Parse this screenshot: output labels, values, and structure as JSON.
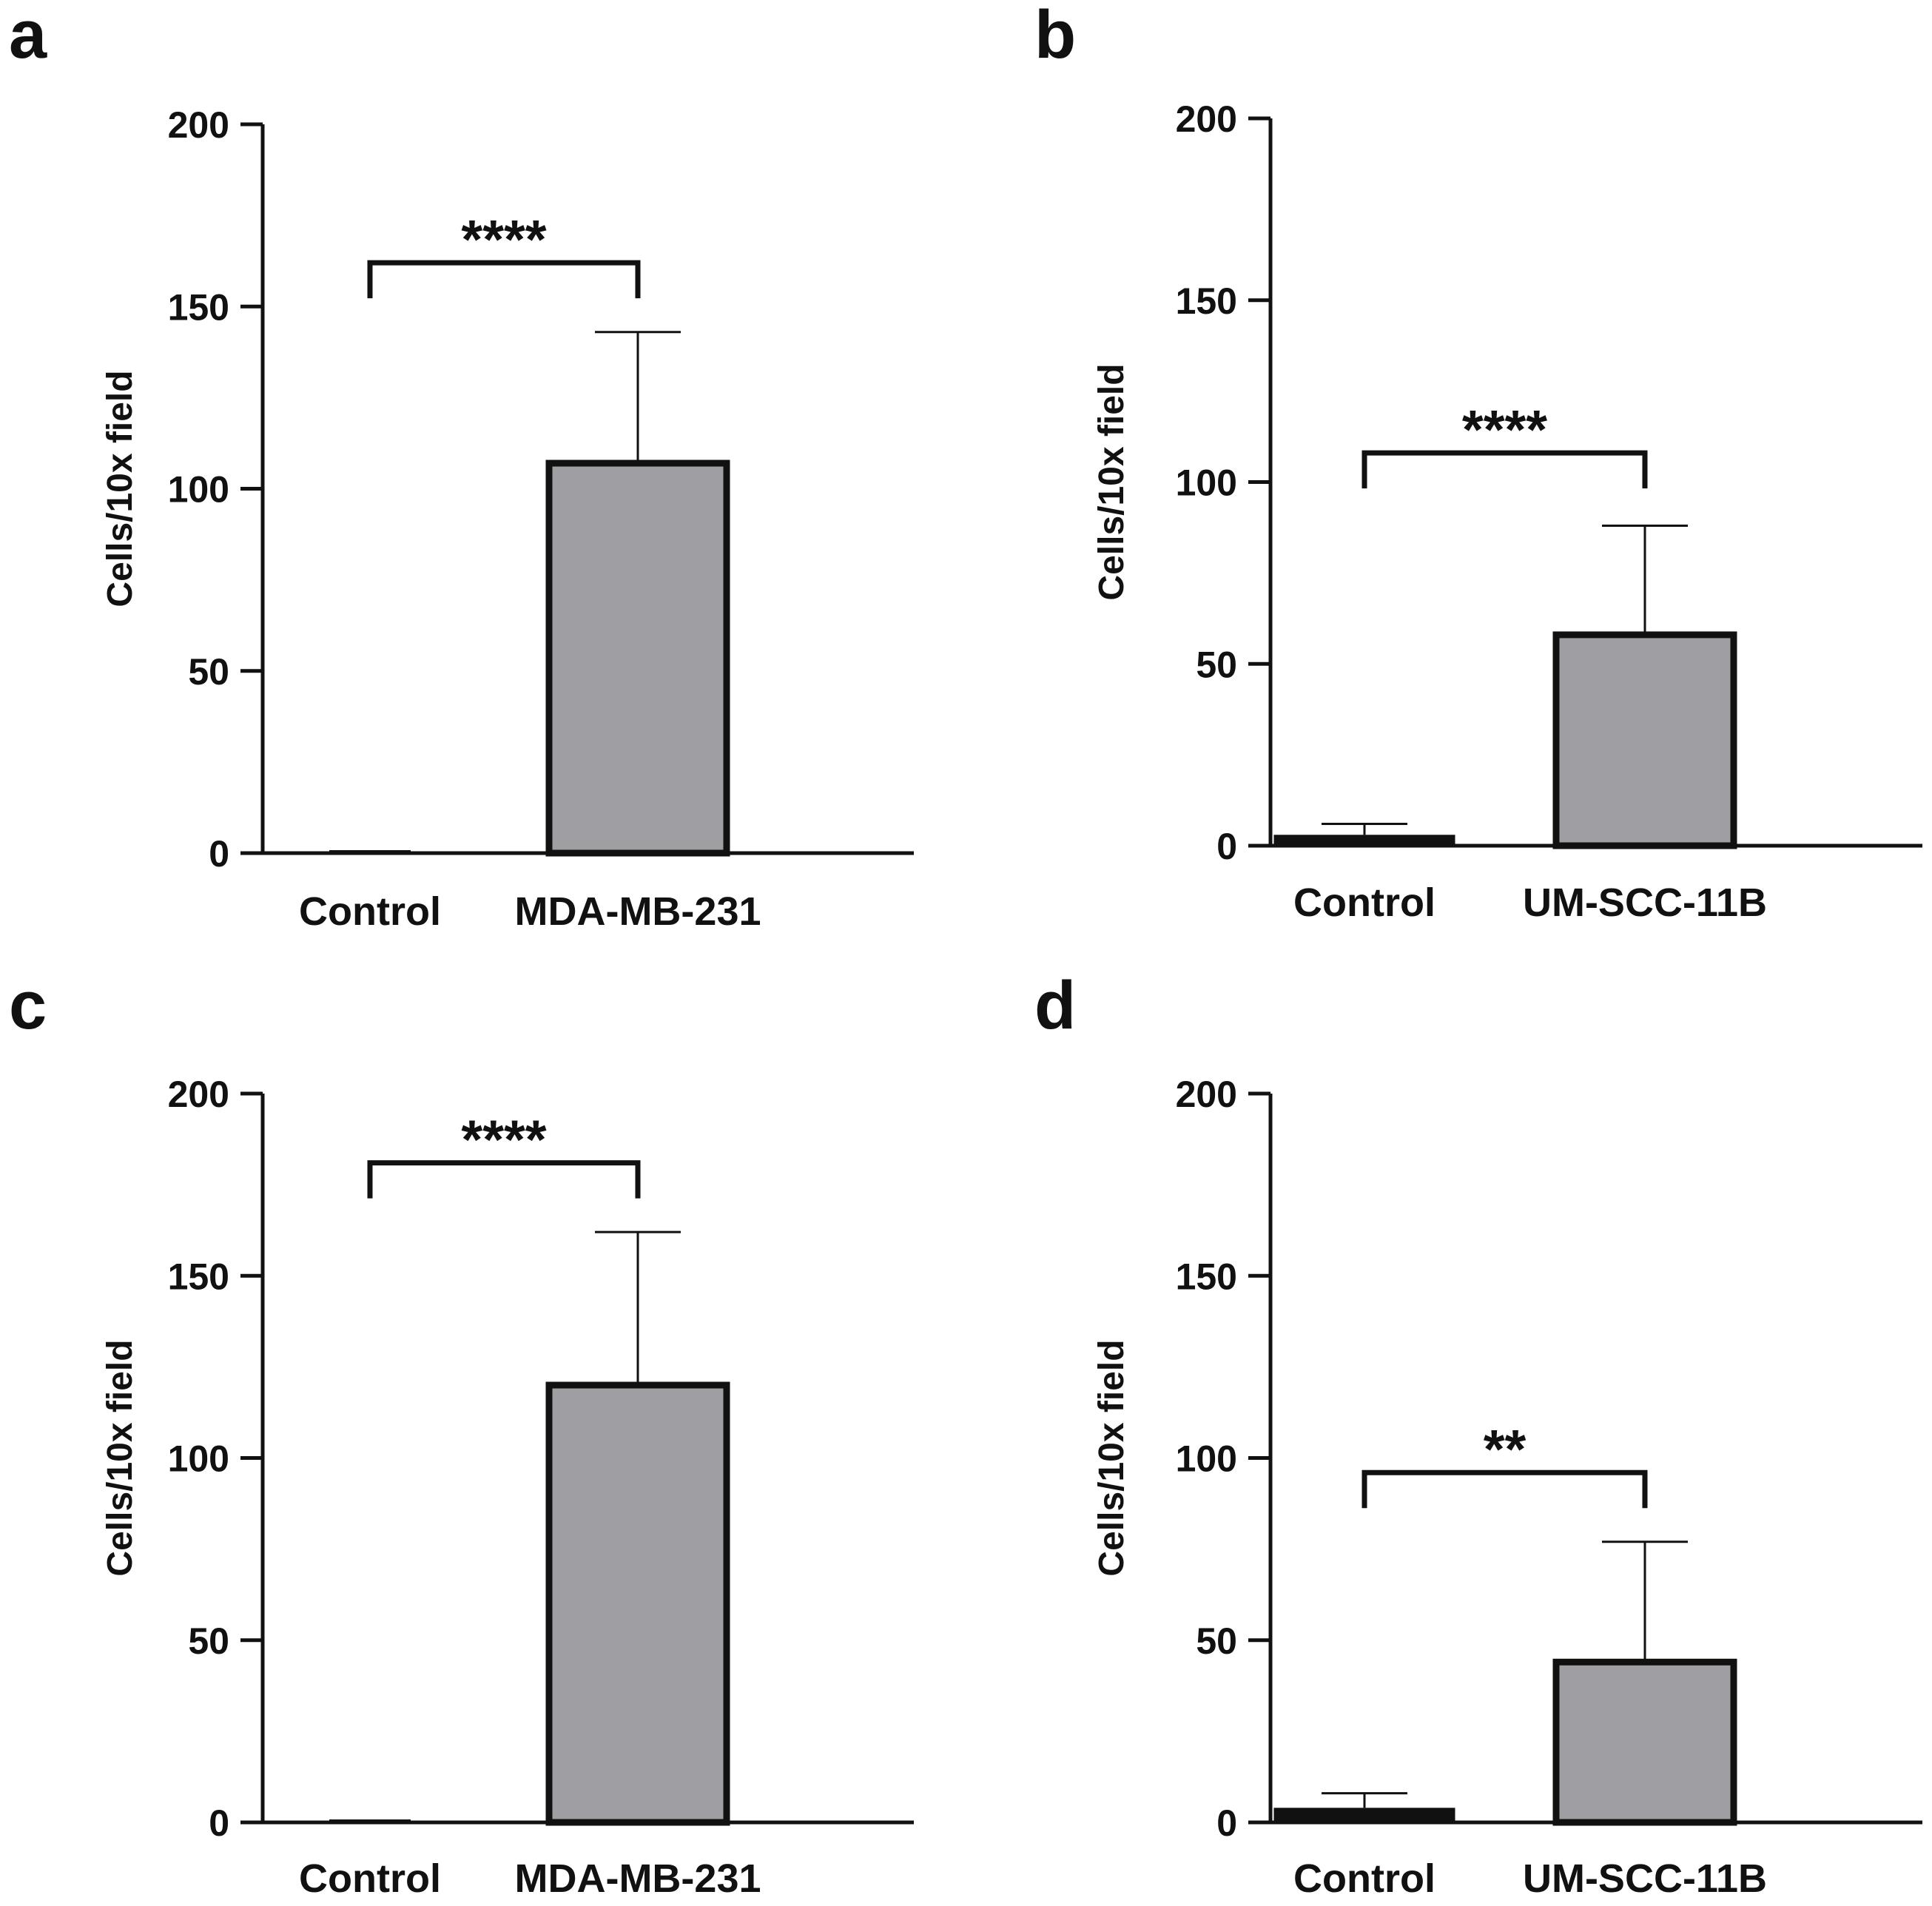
{
  "figure": {
    "panels": [
      "a",
      "b",
      "c",
      "d"
    ]
  },
  "chart_data": [
    {
      "panel": "a",
      "type": "bar",
      "title": "",
      "xlabel": "",
      "ylabel": "Cells/10x field",
      "ylim": [
        0,
        200
      ],
      "yticks": [
        0,
        50,
        100,
        150,
        200
      ],
      "grid": false,
      "categories": [
        "Control",
        "MDA-MB-231"
      ],
      "values": [
        0.5,
        107
      ],
      "errors": [
        0,
        36
      ],
      "bar_colors": [
        "#9e9ea3",
        "#9e9ea3"
      ],
      "significance": {
        "label": "****",
        "bracket_y": 162
      }
    },
    {
      "panel": "b",
      "type": "bar",
      "title": "",
      "xlabel": "",
      "ylabel": "Cells/10x field",
      "ylim": [
        0,
        200
      ],
      "yticks": [
        0,
        50,
        100,
        150,
        200
      ],
      "grid": false,
      "categories": [
        "Control",
        "UM-SCC-11B"
      ],
      "values": [
        3,
        58
      ],
      "errors": [
        3,
        30
      ],
      "bar_colors": [
        "#111111",
        "#9e9ea3"
      ],
      "significance": {
        "label": "****",
        "bracket_y": 108
      }
    },
    {
      "panel": "c",
      "type": "bar",
      "title": "",
      "xlabel": "",
      "ylabel": "Cells/10x field",
      "ylim": [
        0,
        200
      ],
      "yticks": [
        0,
        50,
        100,
        150,
        200
      ],
      "grid": false,
      "categories": [
        "Control",
        "MDA-MB-231"
      ],
      "values": [
        0.5,
        120
      ],
      "errors": [
        0,
        42
      ],
      "bar_colors": [
        "#9e9ea3",
        "#9e9ea3"
      ],
      "significance": {
        "label": "****",
        "bracket_y": 181
      }
    },
    {
      "panel": "d",
      "type": "bar",
      "title": "",
      "xlabel": "",
      "ylabel": "Cells/10x field",
      "ylim": [
        0,
        200
      ],
      "yticks": [
        0,
        50,
        100,
        150,
        200
      ],
      "grid": false,
      "categories": [
        "Control",
        "UM-SCC-11B"
      ],
      "values": [
        4,
        44
      ],
      "errors": [
        4,
        33
      ],
      "bar_colors": [
        "#111111",
        "#9e9ea3"
      ],
      "significance": {
        "label": "**",
        "bracket_y": 96
      }
    }
  ]
}
